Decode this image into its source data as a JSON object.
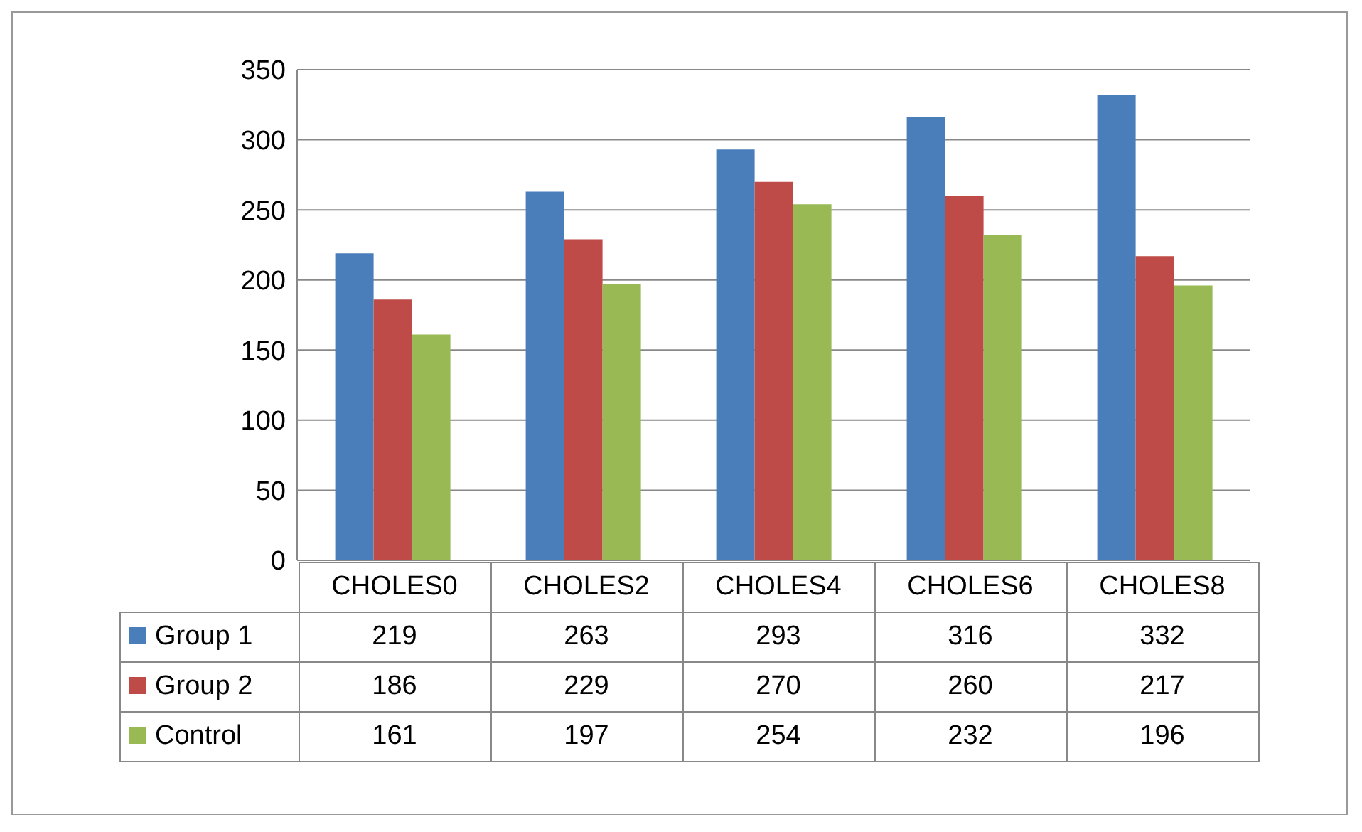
{
  "chart_data": {
    "type": "bar",
    "categories": [
      "CHOLES0",
      "CHOLES2",
      "CHOLES4",
      "CHOLES6",
      "CHOLES8"
    ],
    "series": [
      {
        "name": "Group 1",
        "color": "#4a7ebb",
        "values": [
          219,
          263,
          293,
          316,
          332
        ]
      },
      {
        "name": "Group 2",
        "color": "#be4b48",
        "values": [
          186,
          229,
          270,
          260,
          217
        ]
      },
      {
        "name": "Control",
        "color": "#98b954",
        "values": [
          161,
          197,
          254,
          232,
          196
        ]
      }
    ],
    "ylim": [
      0,
      350
    ],
    "yticks": [
      0,
      50,
      100,
      150,
      200,
      250,
      300,
      350
    ],
    "grid": "y",
    "legend": "bottom",
    "data_labels": true
  }
}
